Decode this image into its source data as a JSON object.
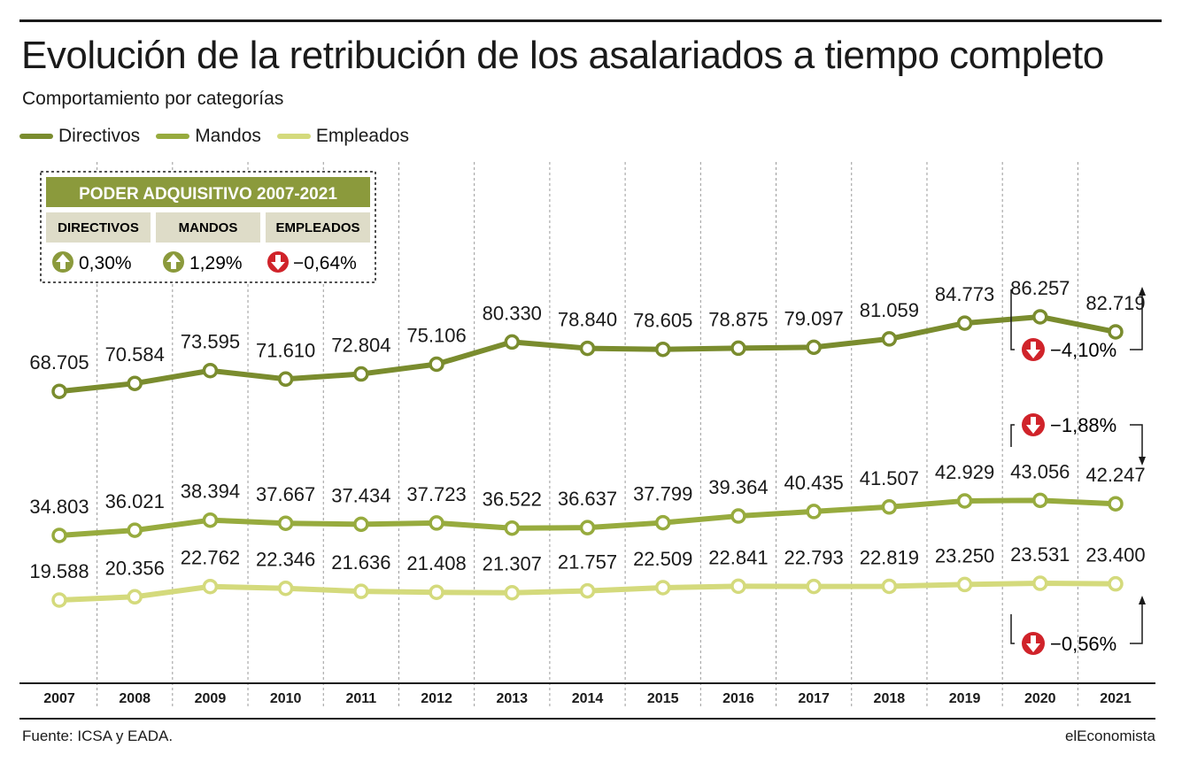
{
  "header": {
    "title": "Evolución de la retribución de los asalariados a tiempo completo",
    "subtitle": "Comportamiento por categorías"
  },
  "legend": [
    {
      "label": "Directivos",
      "color": "#7a8c2e"
    },
    {
      "label": "Mandos",
      "color": "#97ab3e"
    },
    {
      "label": "Empleados",
      "color": "#d4da7c"
    }
  ],
  "inset": {
    "title": "PODER ADQUISITIVO 2007-2021",
    "columns": [
      {
        "label": "DIRECTIVOS",
        "value": "0,30%",
        "direction": "up"
      },
      {
        "label": "MANDOS",
        "value": "1,29%",
        "direction": "up"
      },
      {
        "label": "EMPLEADOS",
        "value": "−0,64%",
        "direction": "down"
      }
    ]
  },
  "changes": [
    {
      "series": "Directivos",
      "value": "−4,10%",
      "direction": "down"
    },
    {
      "series": "Mandos",
      "value": "−1,88%",
      "direction": "down"
    },
    {
      "series": "Empleados",
      "value": "−0,56%",
      "direction": "down"
    }
  ],
  "chart_data": {
    "type": "line",
    "x": [
      "2007",
      "2008",
      "2009",
      "2010",
      "2011",
      "2012",
      "2013",
      "2014",
      "2015",
      "2016",
      "2017",
      "2018",
      "2019",
      "2020",
      "2021"
    ],
    "series": [
      {
        "name": "Directivos",
        "color": "#7a8c2e",
        "values": [
          68705,
          70584,
          73595,
          71610,
          72804,
          75106,
          80330,
          78840,
          78605,
          78875,
          79097,
          81059,
          84773,
          86257,
          82719
        ],
        "labels": [
          "68.705",
          "70.584",
          "73.595",
          "71.610",
          "72.804",
          "75.106",
          "80.330",
          "78.840",
          "78.605",
          "78.875",
          "79.097",
          "81.059",
          "84.773",
          "86.257",
          "82.719"
        ]
      },
      {
        "name": "Mandos",
        "color": "#97ab3e",
        "values": [
          34803,
          36021,
          38394,
          37667,
          37434,
          37723,
          36522,
          36637,
          37799,
          39364,
          40435,
          41507,
          42929,
          43056,
          42247
        ],
        "labels": [
          "34.803",
          "36.021",
          "38.394",
          "37.667",
          "37.434",
          "37.723",
          "36.522",
          "36.637",
          "37.799",
          "39.364",
          "40.435",
          "41.507",
          "42.929",
          "43.056",
          "42.247"
        ]
      },
      {
        "name": "Empleados",
        "color": "#d4da7c",
        "values": [
          19588,
          20356,
          22762,
          22346,
          21636,
          21408,
          21307,
          21757,
          22509,
          22841,
          22793,
          22819,
          23250,
          23531,
          23400
        ],
        "labels": [
          "19.588",
          "20.356",
          "22.762",
          "22.346",
          "21.636",
          "21.408",
          "21.307",
          "21.757",
          "22.509",
          "22.841",
          "22.793",
          "22.819",
          "23.250",
          "23.531",
          "23.400"
        ]
      }
    ],
    "grid": true
  },
  "footer": {
    "source": "Fuente: ICSA y EADA.",
    "brand": "elEconomista"
  }
}
